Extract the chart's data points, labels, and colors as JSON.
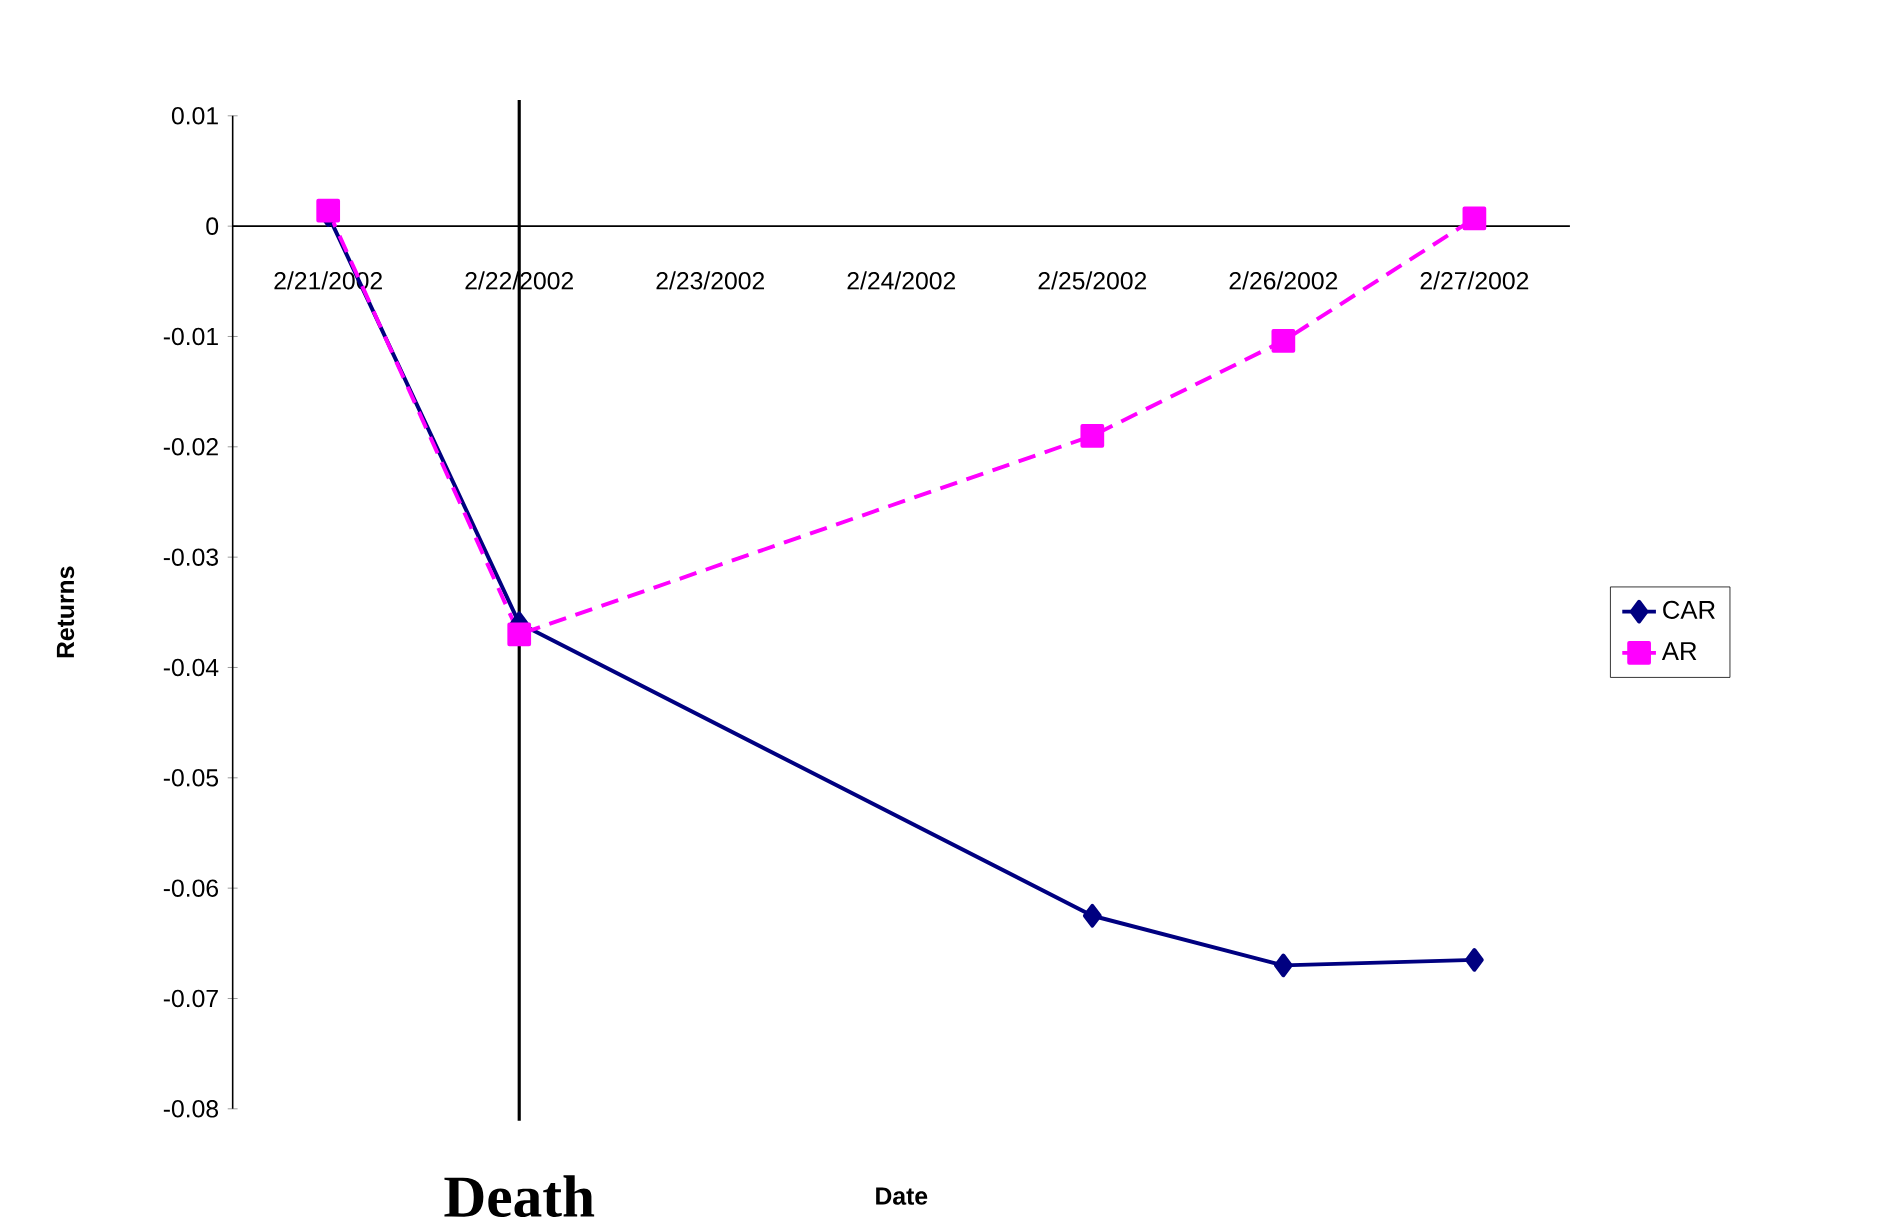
{
  "chart_data": {
    "type": "line",
    "categories": [
      "2/21/2002",
      "2/22/2002",
      "2/23/2002",
      "2/24/2002",
      "2/25/2002",
      "2/26/2002",
      "2/27/2002"
    ],
    "series": [
      {
        "name": "CAR",
        "color": "#000080",
        "marker": "diamond",
        "line_style": "solid",
        "values": [
          0.001,
          -0.036,
          null,
          null,
          -0.0625,
          -0.067,
          -0.0665
        ]
      },
      {
        "name": "AR",
        "color": "#ff00ff",
        "marker": "square",
        "line_style": "dashed",
        "values": [
          0.0014,
          -0.037,
          null,
          null,
          -0.019,
          -0.0104,
          0.0007
        ]
      }
    ],
    "xlabel": "Date",
    "ylabel": "Returns",
    "ylim": [
      -0.08,
      0.01
    ],
    "yticks": [
      -0.08,
      -0.07,
      -0.06,
      -0.05,
      -0.04,
      -0.03,
      -0.02,
      -0.01,
      0,
      0.01
    ],
    "ref_lines": [
      {
        "axis": "x",
        "value": "2/22/2002",
        "label": "Death",
        "color": "#000000"
      }
    ],
    "grid": false,
    "legend": "right"
  }
}
